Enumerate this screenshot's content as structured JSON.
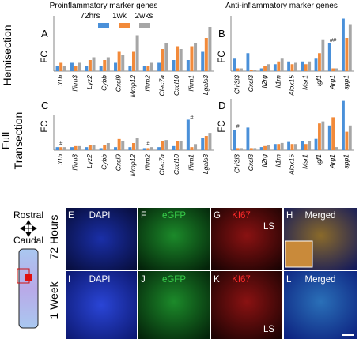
{
  "headers": {
    "left": "Proinflammatory marker genes",
    "right": "Anti-inflammatory marker genes"
  },
  "legend": [
    {
      "label": "72hrs",
      "color": "#4a90d9"
    },
    {
      "label": "1wk",
      "color": "#f28a3a"
    },
    {
      "label": "2wks",
      "color": "#a6a6a6"
    }
  ],
  "row_labels": {
    "hemi": "Hemisection",
    "full1": "Full",
    "full2": "Transection",
    "h72": "72 Hours",
    "w1": "1 Week"
  },
  "axis_label": "FC",
  "orientation": {
    "rostral": "Rostral",
    "caudal": "Caudal"
  },
  "images": {
    "E": {
      "letter": "E",
      "stain": "DAPI",
      "color": "#ffffff"
    },
    "F": {
      "letter": "F",
      "stain": "eGFP",
      "color": "#39d14b"
    },
    "G": {
      "letter": "G",
      "stain": "KI67",
      "color": "#ff2a2a",
      "extra": "LS"
    },
    "H": {
      "letter": "H",
      "stain": "Merged",
      "color": "#ffffff"
    },
    "I": {
      "letter": "I",
      "stain": "DAPI",
      "color": "#ffffff"
    },
    "J": {
      "letter": "J",
      "stain": "eGFP",
      "color": "#39d14b"
    },
    "K": {
      "letter": "K",
      "stain": "KI67",
      "color": "#ff2a2a",
      "extra": "LS"
    },
    "L": {
      "letter": "L",
      "stain": "Merged",
      "color": "#ffffff"
    }
  },
  "chart_data": [
    {
      "panel": "A",
      "type": "bar",
      "title": "",
      "ylabel": "FC",
      "ylim": [
        0,
        20
      ],
      "categories": [
        "Il1b",
        "Ifitm3",
        "Lyz2",
        "Cybb",
        "Cxcl9",
        "Mmp12",
        "Ifitm2",
        "Clec7a",
        "Cxcl10",
        "Ifitm1",
        "Lgals3"
      ],
      "series": [
        {
          "name": "72hrs",
          "values": [
            2,
            3,
            2,
            2,
            3,
            2,
            2,
            3,
            4,
            4,
            7
          ]
        },
        {
          "name": "1wk",
          "values": [
            3,
            2,
            4,
            4,
            7,
            7,
            2,
            8,
            9,
            9,
            12
          ]
        },
        {
          "name": "2wks",
          "values": [
            2,
            3,
            5,
            5,
            6,
            13,
            3,
            10,
            8,
            10,
            16
          ]
        }
      ],
      "annotations": []
    },
    {
      "panel": "B",
      "type": "bar",
      "title": "",
      "ylabel": "FC",
      "ylim": [
        0,
        40
      ],
      "categories": [
        "Chi3l3",
        "Cxcl3",
        "Il2rg",
        "Il1rn",
        "Alox15",
        "Msr1",
        "Igf1",
        "Arg1",
        "spp1"
      ],
      "series": [
        {
          "name": "72hrs",
          "values": [
            9,
            13,
            2,
            5,
            7,
            7,
            9,
            20,
            38
          ]
        },
        {
          "name": "1wk",
          "values": [
            2,
            1,
            4,
            7,
            5,
            5,
            13,
            2,
            24
          ]
        },
        {
          "name": "2wks",
          "values": [
            2,
            1,
            5,
            9,
            6,
            7,
            23,
            2,
            34
          ]
        }
      ],
      "annotations": [
        {
          "category": "Arg1",
          "text": "##"
        }
      ]
    },
    {
      "panel": "C",
      "type": "bar",
      "title": "",
      "ylabel": "FC",
      "ylim": [
        0,
        35
      ],
      "categories": [
        "Il1b",
        "Ifitm3",
        "Lyz2",
        "Cybb",
        "Cxcl9",
        "Mmp12",
        "Ifitm2",
        "Clec7a",
        "Cxcl10",
        "Ifitm1",
        "Lgals3"
      ],
      "series": [
        {
          "name": "72hrs",
          "values": [
            3,
            3,
            3,
            2,
            3,
            3,
            2,
            3,
            4,
            30,
            12
          ]
        },
        {
          "name": "1wk",
          "values": [
            3,
            4,
            5,
            5,
            11,
            7,
            2,
            9,
            9,
            3,
            14
          ]
        },
        {
          "name": "2wks",
          "values": [
            3,
            4,
            5,
            7,
            9,
            12,
            3,
            10,
            9,
            6,
            17
          ]
        }
      ],
      "annotations": [
        {
          "category": "Il1b",
          "text": "#"
        },
        {
          "category": "Ifitm2",
          "text": "#"
        },
        {
          "category": "Ifitm1",
          "text": "#"
        }
      ]
    },
    {
      "panel": "D",
      "type": "bar",
      "title": "",
      "ylabel": "FC",
      "ylim": [
        0,
        50
      ],
      "categories": [
        "Chi3l3",
        "Cxcl3",
        "Il2rg",
        "Il1rn",
        "Alox15",
        "Msr1",
        "Igf1",
        "Arg1",
        "spp1"
      ],
      "series": [
        {
          "name": "72hrs",
          "values": [
            20,
            22,
            3,
            6,
            8,
            9,
            11,
            24,
            48
          ]
        },
        {
          "name": "1wk",
          "values": [
            2,
            2,
            4,
            6,
            6,
            6,
            26,
            32,
            18
          ]
        },
        {
          "name": "2wks",
          "values": [
            2,
            2,
            5,
            7,
            6,
            9,
            28,
            3,
            24
          ]
        }
      ],
      "annotations": [
        {
          "category": "Chi3l3",
          "text": "#"
        }
      ]
    }
  ]
}
